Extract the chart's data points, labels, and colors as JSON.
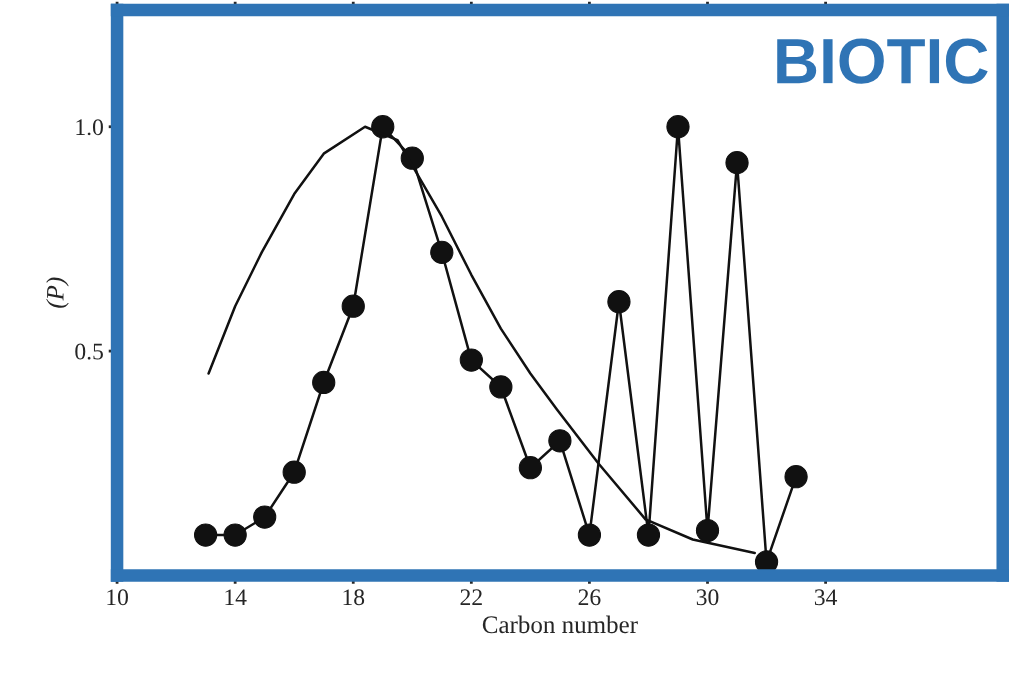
{
  "chart_data": {
    "type": "line",
    "xlabel": "Carbon number",
    "ylabel": "(P)",
    "annotations": [
      "BIOTIC"
    ],
    "xlim": [
      10,
      40
    ],
    "ylim": [
      0,
      1.26
    ],
    "xticks": [
      10,
      14,
      18,
      22,
      26,
      30,
      34
    ],
    "yticks": [
      0.5,
      {
        "value": 1.0,
        "label": "1.0"
      }
    ],
    "grid": false,
    "legend": false,
    "series": [
      {
        "color": "#111111",
        "marker": "circle",
        "x": [
          13,
          14,
          15,
          16,
          17,
          18,
          19,
          20,
          21,
          22,
          23,
          24,
          25,
          26,
          27,
          28,
          29,
          30,
          31,
          32,
          33
        ],
        "values": [
          0.09,
          0.09,
          0.13,
          0.23,
          0.43,
          0.6,
          1.0,
          0.93,
          0.72,
          0.48,
          0.42,
          0.24,
          0.3,
          0.09,
          0.61,
          0.09,
          1.0,
          0.1,
          0.92,
          0.03,
          0.22
        ]
      },
      {
        "color": "#111111",
        "marker": "none",
        "x": [
          13.1,
          14,
          14.9,
          16,
          17,
          18.4,
          19.5,
          21,
          22,
          23,
          24,
          24.9,
          26.3,
          27.9,
          29.5,
          31.6
        ],
        "values": [
          0.45,
          0.6,
          0.72,
          0.85,
          0.94,
          1.0,
          0.97,
          0.8,
          0.67,
          0.55,
          0.45,
          0.37,
          0.25,
          0.125,
          0.08,
          0.05
        ]
      }
    ]
  }
}
